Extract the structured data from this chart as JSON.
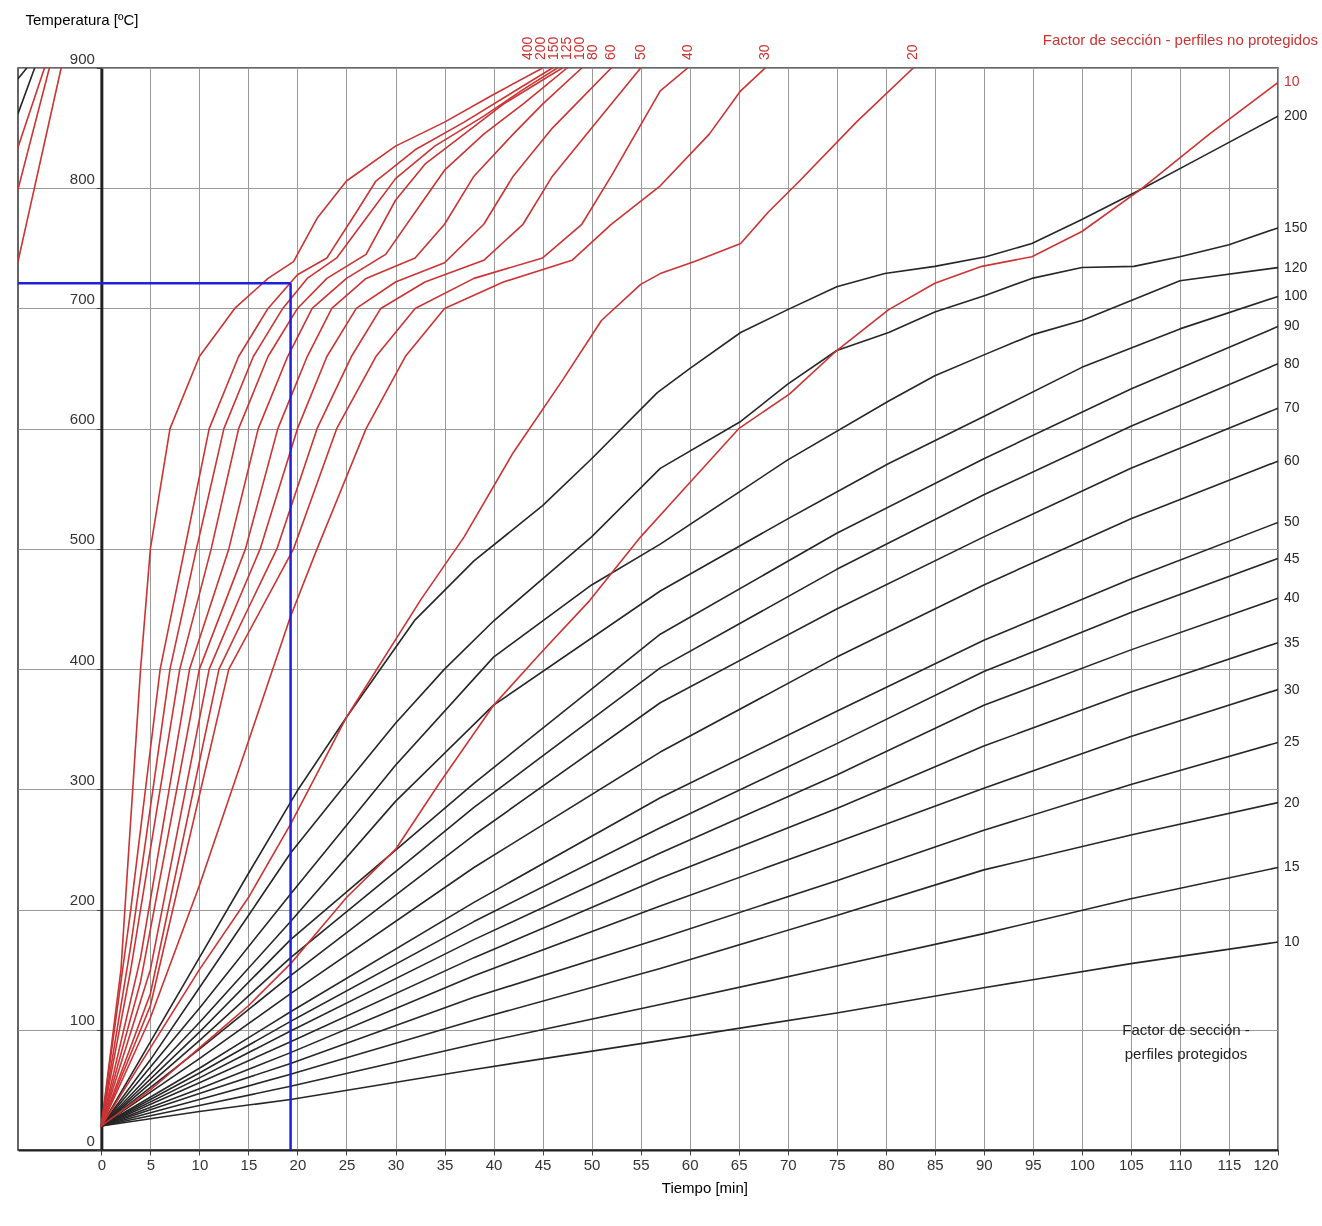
{
  "chart_data": {
    "type": "line",
    "xlabel": "Tiempo [min]",
    "ylabel": "Temperatura [ºC]",
    "xlim": [
      -8.5,
      120
    ],
    "ylim": [
      0,
      900
    ],
    "xticks": [
      0,
      5,
      10,
      15,
      20,
      25,
      30,
      35,
      40,
      45,
      50,
      55,
      60,
      65,
      70,
      75,
      80,
      85,
      90,
      95,
      100,
      105,
      110,
      115,
      120
    ],
    "yticks": [
      0,
      100,
      200,
      300,
      400,
      500,
      600,
      700,
      800,
      900
    ],
    "grid": true,
    "annotations": [
      "Factor de sección - perfiles no protegidos",
      "Factor de sección - perfiles protegidos"
    ],
    "ref_lines": [
      {
        "axis": "x",
        "value": 19.3,
        "color": "#1f1fe0"
      },
      {
        "axis": "y",
        "value": 721,
        "color": "#1f1fe0"
      }
    ],
    "series": [
      {
        "name": "200",
        "color": "#262626",
        "x": [
          0,
          5,
          10,
          15,
          20,
          25,
          32,
          38,
          45,
          50,
          56.7,
          60,
          65.2,
          70,
          75,
          79.9,
          85,
          90.2,
          94.9,
          100,
          106,
          112,
          120
        ],
        "values": [
          20,
          90,
          160,
          230,
          299,
          360,
          441,
          490,
          536,
          575,
          630,
          650,
          680,
          699,
          718,
          729,
          735,
          743,
          754,
          774,
          799,
          825,
          860
        ]
      },
      {
        "name": "150",
        "color": "#262626",
        "x": [
          0,
          5,
          10,
          15,
          19.3,
          25,
          30,
          35,
          40,
          45,
          50,
          57,
          65.2,
          70,
          75,
          80.3,
          85,
          90.2,
          94.9,
          100,
          105.3,
          110,
          115,
          120
        ],
        "values": [
          20,
          75,
          135,
          195,
          247,
          305,
          355,
          400,
          440,
          475,
          510,
          567,
          606,
          637,
          665,
          680,
          697,
          711,
          725,
          734,
          735,
          743,
          753,
          767
        ]
      },
      {
        "name": "120",
        "color": "#262626",
        "x": [
          0,
          10,
          19.3,
          30,
          40,
          50,
          57,
          70,
          80.3,
          85,
          90.2,
          94.9,
          100,
          110,
          120
        ],
        "values": [
          20,
          118,
          213,
          320,
          410,
          470,
          504,
          574,
          623,
          644,
          662,
          678,
          690,
          723,
          734
        ]
      },
      {
        "name": "100",
        "color": "#262626",
        "x": [
          0,
          10,
          19.3,
          30,
          40,
          57,
          70,
          80.3,
          90.2,
          100,
          110,
          120
        ],
        "values": [
          20,
          106,
          190,
          290,
          370,
          465,
          525,
          571,
          611,
          651,
          683,
          710
        ]
      },
      {
        "name": "90",
        "color": "#262626",
        "x": [
          0,
          10,
          19.3,
          38,
          57,
          75,
          90,
          105,
          120
        ],
        "values": [
          20,
          98,
          175,
          305,
          429,
          513,
          575,
          633,
          685
        ]
      },
      {
        "name": "80",
        "color": "#262626",
        "x": [
          0,
          10,
          19.3,
          38,
          57,
          75,
          90,
          105,
          120
        ],
        "values": [
          20,
          91,
          160,
          285,
          401,
          483,
          545,
          602,
          654
        ]
      },
      {
        "name": "70",
        "color": "#262626",
        "x": [
          0,
          10,
          19.3,
          38,
          57,
          75,
          90,
          105,
          120
        ],
        "values": [
          20,
          84,
          145,
          262,
          372,
          450,
          510,
          567,
          617
        ]
      },
      {
        "name": "60",
        "color": "#262626",
        "x": [
          0,
          10,
          19.3,
          38,
          57,
          75,
          90,
          105,
          120
        ],
        "values": [
          20,
          76,
          130,
          235,
          331,
          410,
          470,
          525,
          573
        ]
      },
      {
        "name": "50",
        "color": "#262626",
        "x": [
          0,
          10,
          19.3,
          38,
          57,
          75,
          90,
          105,
          120
        ],
        "values": [
          20,
          68,
          115,
          206,
          293,
          365,
          424,
          475,
          522
        ]
      },
      {
        "name": "45",
        "color": "#262626",
        "x": [
          0,
          10,
          19.3,
          38,
          57,
          75,
          90,
          105,
          120
        ],
        "values": [
          20,
          64,
          107,
          190,
          268,
          338,
          398,
          447,
          492
        ]
      },
      {
        "name": "40",
        "color": "#262626",
        "x": [
          0,
          10,
          19.3,
          38,
          57,
          75,
          90,
          105,
          120
        ],
        "values": [
          20,
          60,
          99,
          175,
          247,
          312,
          370,
          416,
          459
        ]
      },
      {
        "name": "35",
        "color": "#262626",
        "x": [
          0,
          10,
          19.3,
          38,
          57,
          75,
          90,
          105,
          120
        ],
        "values": [
          20,
          56,
          90,
          160,
          226,
          284,
          336,
          381,
          422
        ]
      },
      {
        "name": "30",
        "color": "#262626",
        "x": [
          0,
          10,
          19.3,
          38,
          57,
          75,
          90,
          105,
          120
        ],
        "values": [
          20,
          51,
          81,
          145,
          203,
          256,
          301,
          344,
          383
        ]
      },
      {
        "name": "25",
        "color": "#262626",
        "x": [
          0,
          10,
          19.3,
          38,
          57,
          75,
          90,
          105,
          120
        ],
        "values": [
          20,
          47,
          72,
          127,
          176,
          224,
          266,
          304,
          339
        ]
      },
      {
        "name": "20",
        "color": "#262626",
        "x": [
          0,
          10,
          19.3,
          38,
          57,
          75,
          90,
          105,
          120
        ],
        "values": [
          20,
          42,
          63,
          108,
          151,
          195,
          233,
          262,
          289
        ]
      },
      {
        "name": "15",
        "color": "#262626",
        "x": [
          0,
          10,
          19.3,
          38,
          57,
          75,
          90,
          105,
          120
        ],
        "values": [
          20,
          37,
          53,
          88,
          121,
          153,
          180,
          209,
          235
        ]
      },
      {
        "name": "10",
        "color": "#262626",
        "x": [
          0,
          10,
          19.3,
          38,
          57,
          75,
          90,
          105,
          120
        ],
        "values": [
          20,
          32,
          42,
          67,
          91,
          114,
          135,
          155,
          173
        ]
      },
      {
        "color": "#262626",
        "x": [
          -8.5,
          -6.8
        ],
        "values": [
          862,
          900
        ]
      },
      {
        "color": "#262626",
        "x": [
          -8.5,
          -7.6
        ],
        "values": [
          891,
          900
        ]
      },
      {
        "color": "#cc3333",
        "x": [
          -8.5,
          -4.1
        ],
        "values": [
          739,
          900
        ]
      },
      {
        "color": "#cc3333",
        "x": [
          -8.5,
          -5.3
        ],
        "values": [
          799,
          900
        ]
      },
      {
        "color": "#cc3333",
        "x": [
          -8.5,
          -5.8
        ],
        "values": [
          834,
          900
        ]
      },
      {
        "name": "400",
        "color": "#cc3333",
        "x": [
          0,
          2,
          4,
          5,
          7,
          10,
          13.6,
          17,
          19.6,
          22,
          25,
          30,
          35,
          40,
          45
        ],
        "values": [
          20,
          150,
          400,
          500,
          600,
          660,
          700,
          725,
          739,
          775,
          806,
          835,
          855,
          878,
          900
        ]
      },
      {
        "name": "200",
        "color": "#cc3333",
        "x": [
          0,
          3,
          6,
          8.5,
          11,
          14,
          17,
          20,
          23,
          26,
          28,
          32,
          37,
          42,
          46
        ],
        "values": [
          20,
          200,
          400,
          500,
          600,
          660,
          700,
          728,
          742,
          780,
          806,
          832,
          855,
          880,
          900
        ]
      },
      {
        "name": "150",
        "color": "#cc3333",
        "x": [
          0,
          3,
          7,
          9.7,
          12.5,
          15.5,
          18.5,
          21,
          24,
          27,
          30,
          34,
          39,
          43,
          46.5
        ],
        "values": [
          20,
          170,
          400,
          500,
          600,
          660,
          700,
          725,
          742,
          775,
          808,
          835,
          860,
          882,
          900
        ]
      },
      {
        "name": "125",
        "color": "#cc3333",
        "x": [
          0,
          3,
          8,
          11.2,
          14,
          17,
          20,
          23,
          27,
          30,
          33,
          37,
          41,
          47
        ],
        "values": [
          20,
          150,
          400,
          500,
          600,
          660,
          700,
          725,
          745,
          790,
          820,
          845,
          870,
          900
        ]
      },
      {
        "name": "100",
        "color": "#cc3333",
        "x": [
          0,
          4,
          9,
          13,
          16,
          19,
          21.5,
          25,
          29,
          32,
          35,
          39,
          43,
          47.5
        ],
        "values": [
          20,
          160,
          400,
          500,
          600,
          660,
          700,
          725,
          745,
          780,
          815,
          845,
          870,
          900
        ]
      },
      {
        "name": "80",
        "color": "#cc3333",
        "x": [
          0,
          4,
          10,
          14.7,
          18,
          21,
          23.5,
          27,
          32,
          35,
          38,
          42,
          45,
          49
        ],
        "values": [
          20,
          140,
          400,
          500,
          600,
          660,
          700,
          725,
          742,
          770,
          810,
          845,
          870,
          900
        ]
      },
      {
        "name": "60",
        "color": "#cc3333",
        "x": [
          0,
          5,
          11,
          16.2,
          20,
          23,
          26,
          30,
          35,
          39,
          42,
          46,
          52
        ],
        "values": [
          20,
          150,
          400,
          500,
          600,
          660,
          700,
          722,
          738,
          770,
          810,
          850,
          900
        ]
      },
      {
        "name": "50",
        "color": "#cc3333",
        "x": [
          0,
          5,
          12,
          17.9,
          22,
          25.5,
          28.5,
          33,
          39,
          43,
          46,
          50,
          55
        ],
        "values": [
          20,
          130,
          400,
          500,
          600,
          660,
          700,
          722,
          740,
          770,
          810,
          850,
          900
        ]
      },
      {
        "name": "40",
        "color": "#cc3333",
        "x": [
          0,
          5,
          13,
          19.6,
          24,
          28,
          32,
          38,
          45,
          49,
          52,
          57,
          59.8
        ],
        "values": [
          20,
          120,
          400,
          500,
          600,
          660,
          700,
          725,
          742,
          770,
          810,
          881,
          900
        ]
      },
      {
        "name": "30",
        "color": "#cc3333",
        "x": [
          0,
          5,
          10,
          15,
          19.3,
          22,
          27,
          31,
          35,
          41,
          48,
          52,
          57,
          62,
          65.2,
          67.7
        ],
        "values": [
          20,
          110,
          220,
          340,
          444,
          500,
          600,
          660,
          700,
          722,
          740,
          770,
          802,
          845,
          881,
          900
        ]
      },
      {
        "name": "20",
        "color": "#cc3333",
        "x": [
          0,
          5,
          10,
          15,
          19.3,
          25,
          32.6,
          37,
          42,
          47,
          51,
          55,
          57,
          60.5,
          65.2,
          68,
          71.2,
          77,
          82.8
        ],
        "values": [
          20,
          85,
          150,
          210,
          271,
          360,
          458,
          510,
          580,
          640,
          690,
          720,
          729,
          739,
          754,
          780,
          806,
          855,
          900
        ]
      },
      {
        "name": "10",
        "color": "#cc3333",
        "x": [
          0,
          5,
          10,
          15,
          19.3,
          25,
          30,
          34.3,
          40,
          45,
          49.8,
          55,
          60,
          65,
          70.2,
          75,
          80.3,
          85,
          89.8,
          94.9,
          100,
          106,
          113,
          120
        ],
        "values": [
          20,
          50,
          85,
          120,
          155,
          210,
          250,
          303,
          370,
          415,
          457,
          510,
          555,
          600,
          629,
          665,
          699,
          721,
          735,
          743,
          764,
          799,
          845,
          888
        ]
      }
    ]
  }
}
